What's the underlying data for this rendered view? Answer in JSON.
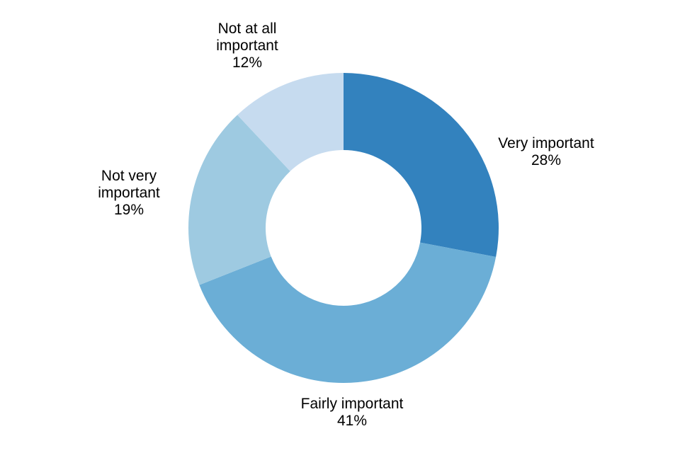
{
  "chart_data": {
    "type": "pie",
    "donut": true,
    "slices": [
      {
        "label_lines": [
          "Very important"
        ],
        "pct_label": "28%",
        "value": 28,
        "color": "#3382be"
      },
      {
        "label_lines": [
          "Fairly important"
        ],
        "pct_label": "41%",
        "value": 41,
        "color": "#6baed6"
      },
      {
        "label_lines": [
          "Not very",
          "important"
        ],
        "pct_label": "19%",
        "value": 19,
        "color": "#9ecae1"
      },
      {
        "label_lines": [
          "Not at all",
          "important"
        ],
        "pct_label": "12%",
        "value": 12,
        "color": "#c6dbef"
      }
    ]
  }
}
